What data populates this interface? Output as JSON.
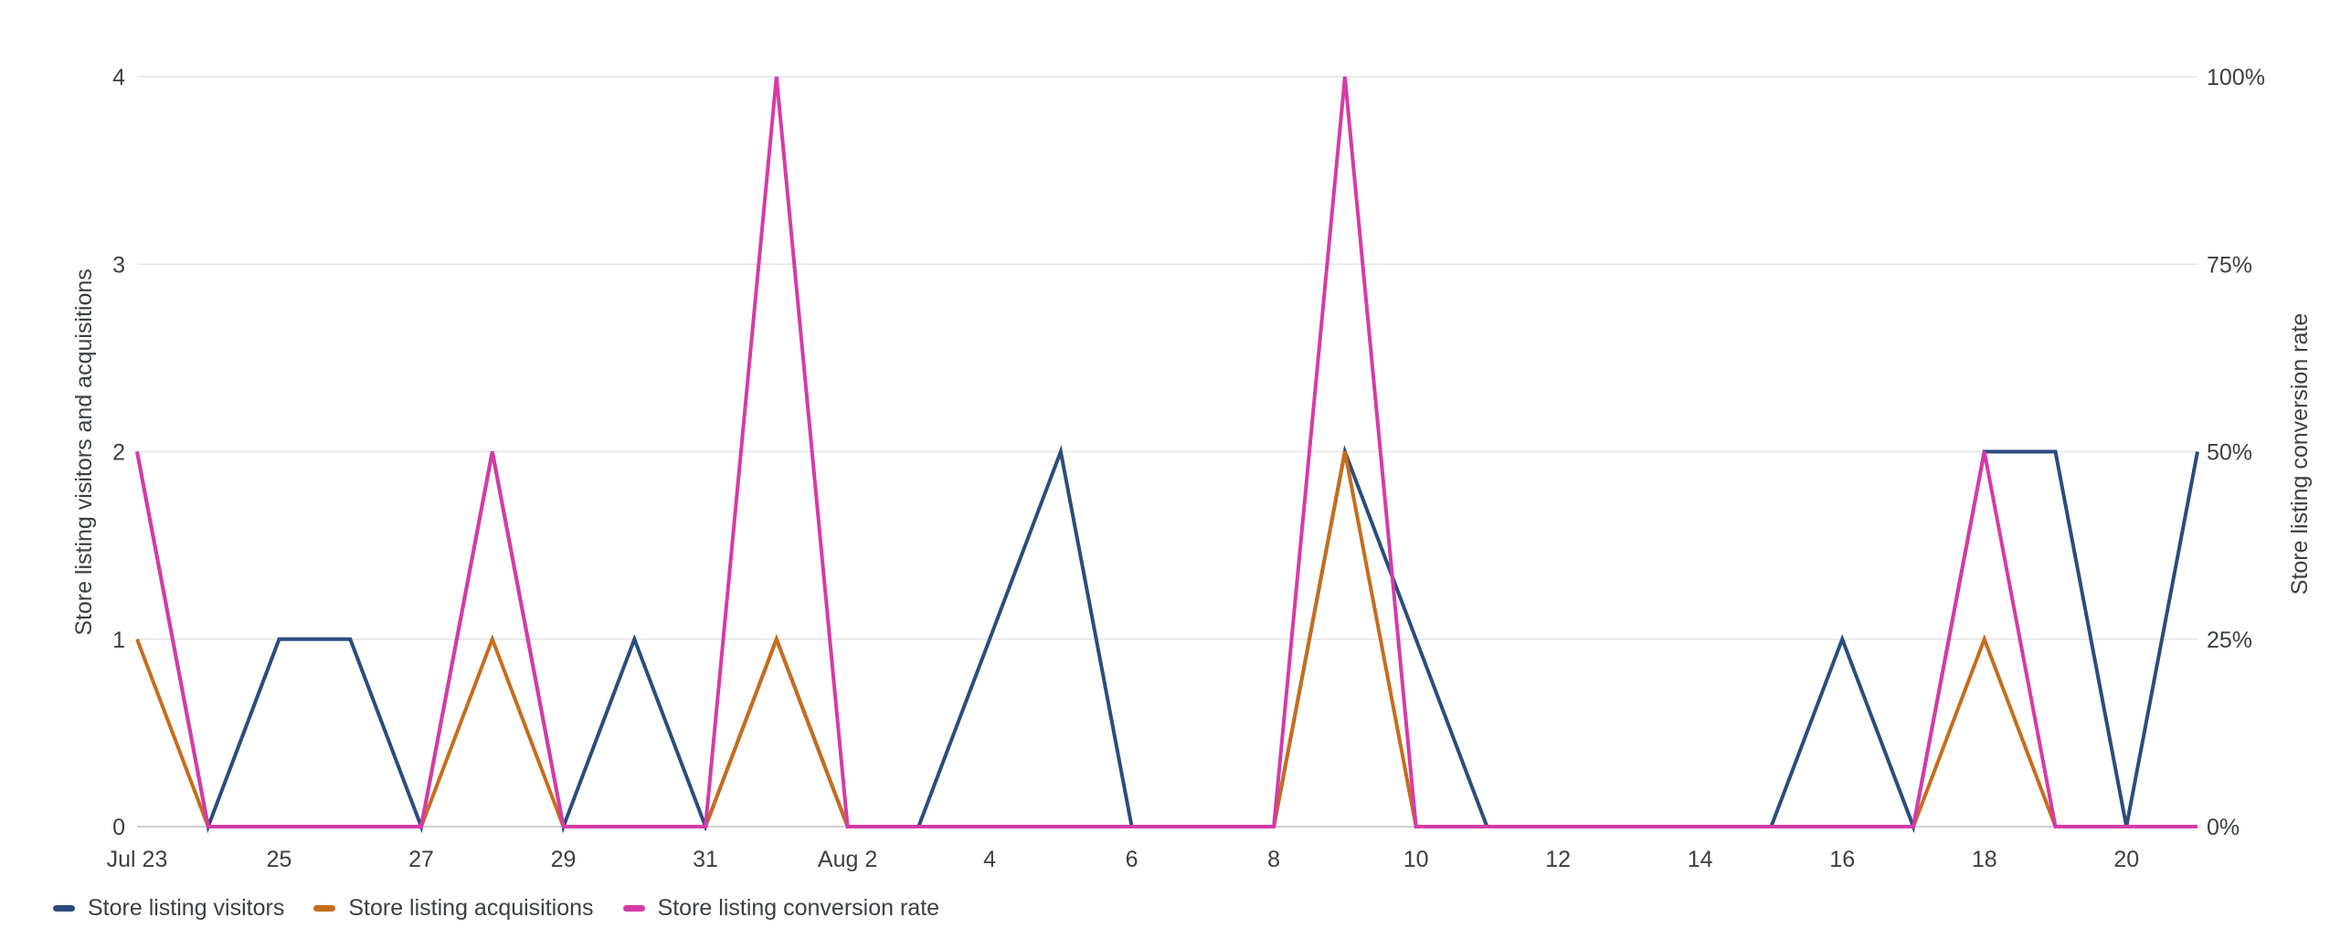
{
  "chart_data": {
    "type": "line",
    "x": [
      "Jul 23",
      "Jul 24",
      "Jul 25",
      "Jul 26",
      "Jul 27",
      "Jul 28",
      "Jul 29",
      "Jul 30",
      "Jul 31",
      "Aug 1",
      "Aug 2",
      "Aug 3",
      "Aug 4",
      "Aug 5",
      "Aug 6",
      "Aug 7",
      "Aug 8",
      "Aug 9",
      "Aug 10",
      "Aug 11",
      "Aug 12",
      "Aug 13",
      "Aug 14",
      "Aug 15",
      "Aug 16",
      "Aug 17",
      "Aug 18",
      "Aug 19",
      "Aug 20",
      "Aug 21"
    ],
    "x_tick_labels": [
      {
        "x": "Jul 23",
        "label": "Jul 23"
      },
      {
        "x": "Jul 25",
        "label": "25"
      },
      {
        "x": "Jul 27",
        "label": "27"
      },
      {
        "x": "Jul 29",
        "label": "29"
      },
      {
        "x": "Jul 31",
        "label": "31"
      },
      {
        "x": "Aug 2",
        "label": "Aug 2"
      },
      {
        "x": "Aug 4",
        "label": "4"
      },
      {
        "x": "Aug 6",
        "label": "6"
      },
      {
        "x": "Aug 8",
        "label": "8"
      },
      {
        "x": "Aug 10",
        "label": "10"
      },
      {
        "x": "Aug 12",
        "label": "12"
      },
      {
        "x": "Aug 14",
        "label": "14"
      },
      {
        "x": "Aug 16",
        "label": "16"
      },
      {
        "x": "Aug 18",
        "label": "18"
      },
      {
        "x": "Aug 20",
        "label": "20"
      }
    ],
    "ylabel": "Store listing visitors and acquisitions",
    "ylim": [
      0,
      4
    ],
    "y_ticks": [
      0,
      1,
      2,
      3,
      4
    ],
    "y2label": "Store listing conversion rate",
    "y2lim": [
      0,
      100
    ],
    "y2_ticks": [
      "0%",
      "25%",
      "50%",
      "75%",
      "100%"
    ],
    "grid": true,
    "legend_position": "bottom-left",
    "series": [
      {
        "name": "Store listing visitors",
        "axis": "left",
        "color": "#2b4c7e",
        "values": [
          2,
          0,
          1,
          1,
          0,
          2,
          0,
          1,
          0,
          1,
          0,
          0,
          1,
          2,
          0,
          0,
          0,
          2,
          1,
          0,
          0,
          0,
          0,
          0,
          1,
          0,
          2,
          2,
          0,
          2
        ]
      },
      {
        "name": "Store listing acquisitions",
        "axis": "left",
        "color": "#c66d1c",
        "values": [
          1,
          0,
          0,
          0,
          0,
          1,
          0,
          0,
          0,
          1,
          0,
          0,
          0,
          0,
          0,
          0,
          0,
          2,
          0,
          0,
          0,
          0,
          0,
          0,
          0,
          0,
          1,
          0,
          0,
          0
        ]
      },
      {
        "name": "Store listing conversion rate",
        "axis": "right",
        "unit": "%",
        "color": "#d63aa8",
        "values": [
          50,
          0,
          0,
          0,
          0,
          50,
          0,
          0,
          0,
          100,
          0,
          0,
          0,
          0,
          0,
          0,
          0,
          100,
          0,
          0,
          0,
          0,
          0,
          0,
          0,
          0,
          50,
          0,
          0,
          0
        ]
      }
    ]
  }
}
